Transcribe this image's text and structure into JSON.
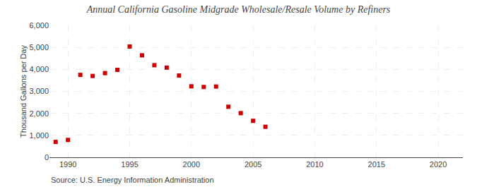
{
  "chart_data": {
    "type": "scatter",
    "title": "Annual California Gasoline Midgrade Wholesale/Resale Volume by Refiners",
    "ylabel": "Thousand Gallons per Day",
    "annotations": [
      "Source: U.S. Energy Information Administration"
    ],
    "x": [
      1989,
      1990,
      1991,
      1992,
      1993,
      1994,
      1995,
      1996,
      1997,
      1998,
      1999,
      2000,
      2001,
      2002,
      2003,
      2004,
      2005,
      2006
    ],
    "values": [
      700,
      790,
      3750,
      3700,
      3830,
      3980,
      5040,
      4640,
      4190,
      4080,
      3720,
      3230,
      3200,
      3220,
      2300,
      2010,
      1660,
      1390
    ],
    "color": "#cc0000",
    "marker": "square",
    "xlim": [
      1988.5,
      2022
    ],
    "ylim": [
      0,
      6000
    ],
    "xticks": [
      1990,
      1995,
      2000,
      2005,
      2010,
      2015,
      2020
    ],
    "yticks": [
      0,
      {
        "value": 1000,
        "label": "1,000"
      },
      {
        "value": 2000,
        "label": "2,000"
      },
      {
        "value": 3000,
        "label": "3,000"
      },
      {
        "value": 4000,
        "label": "4,000"
      },
      {
        "value": 5000,
        "label": "5,000"
      },
      {
        "value": 6000,
        "label": "6,000"
      }
    ],
    "grid": true
  }
}
